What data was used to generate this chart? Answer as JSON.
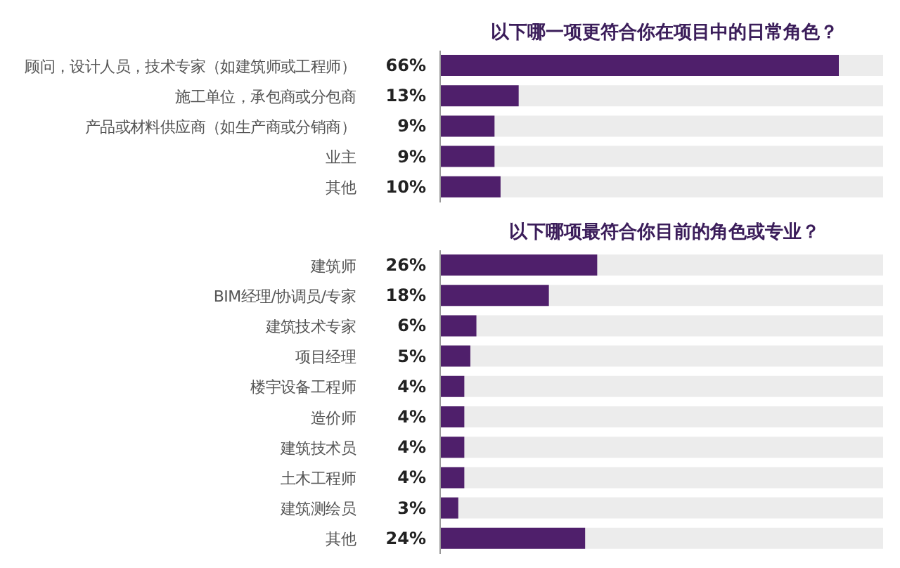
{
  "chart_data": [
    {
      "type": "bar",
      "orientation": "horizontal",
      "title": "以下哪一项更符合你在项目中的日常角色？",
      "categories": [
        "顾问，设计人员，技术专家（如建筑师或工程师）",
        "施工单位，承包商或分包商",
        "产品或材料供应商（如生产商或分销商）",
        "业主",
        "其他"
      ],
      "values": [
        66,
        13,
        9,
        9,
        10
      ],
      "value_labels": [
        "66%",
        "13%",
        "9%",
        "9%",
        "10%"
      ],
      "color": "#4f1f6b",
      "grid": false,
      "legend": false
    },
    {
      "type": "bar",
      "orientation": "horizontal",
      "title": "以下哪项最符合你目前的角色或专业？",
      "categories": [
        "建筑师",
        "BIM经理/协调员/专家",
        "建筑技术专家",
        "项目经理",
        "楼宇设备工程师",
        "造价师",
        "建筑技术员",
        "土木工程师",
        "建筑测绘员",
        "其他"
      ],
      "values": [
        26,
        18,
        6,
        5,
        4,
        4,
        4,
        4,
        3,
        24
      ],
      "value_labels": [
        "26%",
        "18%",
        "6%",
        "5%",
        "4%",
        "4%",
        "4%",
        "4%",
        "3%",
        "24%"
      ],
      "color": "#4f1f6b",
      "grid": false,
      "legend": false
    }
  ]
}
